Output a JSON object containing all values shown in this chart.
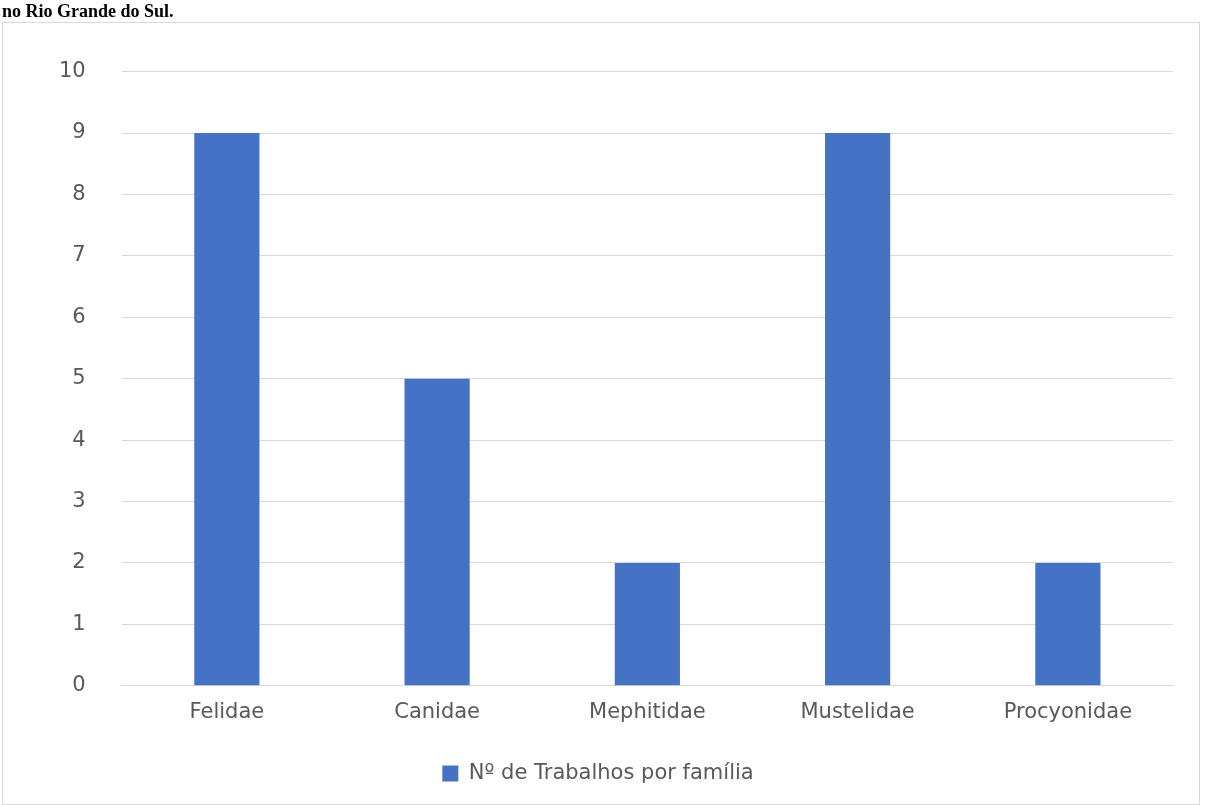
{
  "chart_data": {
    "type": "bar",
    "title": "no Rio Grande do Sul.",
    "categories": [
      "Felidae",
      "Canidae",
      "Mephitidae",
      "Mustelidae",
      "Procyonidae"
    ],
    "series": [
      {
        "name": "Nº de Trabalhos por família",
        "color": "#4472c4",
        "values": [
          9,
          5,
          2,
          9,
          2
        ]
      }
    ],
    "ylim": [
      0,
      10
    ],
    "yticks": [
      0,
      1,
      2,
      3,
      4,
      5,
      6,
      7,
      8,
      9,
      10
    ],
    "grid": "y",
    "legend": "bottom"
  }
}
